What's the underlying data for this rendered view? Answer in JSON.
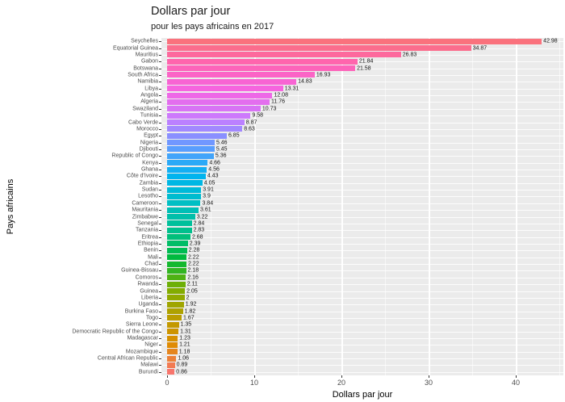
{
  "chart_data": {
    "type": "bar",
    "orientation": "horizontal",
    "title": "Dollars par jour",
    "subtitle": "pour les pays africains en 2017",
    "xlabel": "Dollars par jour",
    "ylabel": "Pays africains",
    "xlim": [
      0,
      45.5
    ],
    "x_major_ticks": [
      0,
      10,
      20,
      30,
      40
    ],
    "x_minor_gridlines": [
      5,
      15,
      25,
      35,
      45
    ],
    "grid": true,
    "legend": "none",
    "bar_value_labels_visible": true,
    "categories": [
      "Seychelles",
      "Equatorial Guinea",
      "Mauritius",
      "Gabon",
      "Botswana",
      "South Africa",
      "Namibia",
      "Libya",
      "Angola",
      "Algeria",
      "Swaziland",
      "Tunisia",
      "Cabo Verde",
      "Morocco",
      "Egypt",
      "Nigeria",
      "Djibouti",
      "Republic of Congo",
      "Kenya",
      "Ghana",
      "Côte d'Ivoire",
      "Zambia",
      "Sudan",
      "Lesotho",
      "Cameroon",
      "Mauritania",
      "Zimbabwe",
      "Senegal",
      "Tanzania",
      "Eritrea",
      "Ethiopia",
      "Benin",
      "Mali",
      "Chad",
      "Guinea-Bissau",
      "Comoros",
      "Rwanda",
      "Guinea",
      "Liberia",
      "Uganda",
      "Burkina Faso",
      "Togo",
      "Sierra Leone",
      "Democratic Republic of the Congo",
      "Madagascar",
      "Niger",
      "Mozambique",
      "Central African Republic",
      "Malawi",
      "Burundi"
    ],
    "values": [
      42.98,
      34.87,
      26.83,
      21.84,
      21.58,
      16.93,
      14.83,
      13.31,
      12.08,
      11.76,
      10.73,
      9.58,
      8.87,
      8.63,
      6.85,
      5.46,
      5.45,
      5.36,
      4.66,
      4.56,
      4.43,
      4.05,
      3.91,
      3.9,
      3.84,
      3.61,
      3.22,
      2.84,
      2.83,
      2.68,
      2.39,
      2.28,
      2.22,
      2.22,
      2.18,
      2.16,
      2.11,
      2.05,
      2,
      1.92,
      1.82,
      1.67,
      1.35,
      1.31,
      1.23,
      1.21,
      1.18,
      1.06,
      0.89,
      0.86
    ]
  },
  "style": {
    "background": "#FFFFFF",
    "panel_bg": "#EBEBEB",
    "grid_color": "#FFFFFF",
    "axis_text_color": "#4D4D4D",
    "tick_mark_color": "#333333",
    "title_color": "#1A1A1A",
    "value_label_color": "#111111",
    "palette": {
      "name": "ggplot-hue-rainbow",
      "hue_start": 15,
      "hue_step": 7.2,
      "anchor_hues": [
        15,
        45,
        75,
        105,
        135,
        165,
        195,
        225,
        255,
        285,
        315,
        345
      ],
      "anchor_hexes": [
        "#F8766D",
        "#DE8C00",
        "#B79F00",
        "#7CAE00",
        "#00BA38",
        "#00C08B",
        "#00BFC4",
        "#00B4F0",
        "#619CFF",
        "#C77CFF",
        "#F564E3",
        "#FF64B0"
      ]
    }
  }
}
